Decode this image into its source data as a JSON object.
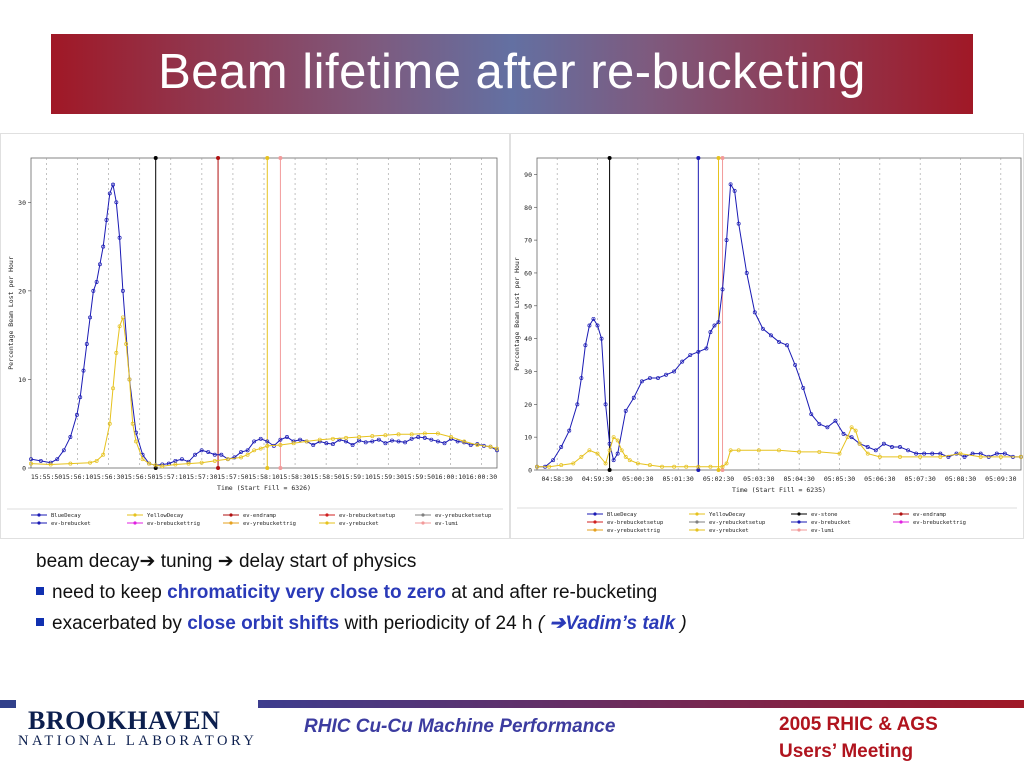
{
  "slide": {
    "title": "Beam lifetime after re-bucketing"
  },
  "bullets": {
    "line1": {
      "a": "beam decay",
      "arrow1": "➔",
      "b": " tuning ",
      "arrow2": "➔",
      "c": " delay start of physics"
    },
    "line2": {
      "a": "need to keep ",
      "hl": "chromaticity very close to zero",
      "b": " at and after re-bucketing"
    },
    "line3": {
      "a": "exacerbated by ",
      "hl": "close orbit shifts",
      "b": " with periodicity of 24 h ",
      "open": "( ",
      "arrow": "➔",
      "link": "Vadim’s talk",
      "close": " )"
    }
  },
  "footer": {
    "logo_main": "BROOKHAVEN",
    "logo_sub": "NATIONAL LABORATORY",
    "center": "RHIC Cu-Cu Machine Performance",
    "right_line1": "2005 RHIC & AGS",
    "right_line2": "Users’ Meeting"
  },
  "colors": {
    "blue_series": "#1a1ab4",
    "yellow_series": "#e6c21e",
    "title_bar_edge": "#a01826",
    "title_bar_center": "#6370a2",
    "highlight": "#2a3ab8",
    "footer_red": "#b0141e"
  },
  "chart_data": [
    {
      "type": "line",
      "xlabel": "Time (Start Fill = 6326)",
      "ylabel": "Percentage Beam Lost per Hour",
      "ylim": [
        0,
        35
      ],
      "yticks": [
        0,
        10,
        20,
        30
      ],
      "xticks": [
        "15:55:50",
        "15:56:10",
        "15:56:30",
        "15:56:50",
        "15:57:10",
        "15:57:30",
        "15:57:50",
        "15:58:10",
        "15:58:30",
        "15:58:50",
        "15:59:10",
        "15:59:30",
        "15:59:50",
        "16:00:10",
        "16:00:30"
      ],
      "grid": true,
      "legend_position": "bottom",
      "series": [
        {
          "name": "BlueDecay",
          "color": "#1a1ab4",
          "x": [
            0,
            3,
            6,
            8,
            10,
            12,
            14,
            15,
            16,
            17,
            18,
            19,
            20,
            21,
            22,
            23,
            24,
            25,
            26,
            27,
            28,
            30,
            32,
            34,
            36,
            38,
            40,
            42,
            44,
            46,
            48,
            50,
            52,
            54,
            56,
            58,
            60,
            62,
            64,
            66,
            68,
            70,
            72,
            74,
            76,
            78,
            80,
            82,
            84,
            86,
            88,
            90,
            92,
            94,
            96,
            98,
            100,
            102,
            104,
            106,
            108,
            110,
            112,
            114,
            116,
            118,
            120,
            122,
            124,
            126,
            128,
            130,
            132,
            134,
            136,
            138,
            140,
            142
          ],
          "y": [
            1,
            0.8,
            0.6,
            1,
            2,
            3.5,
            6,
            8,
            11,
            14,
            17,
            20,
            21,
            23,
            25,
            28,
            31,
            32,
            30,
            26,
            20,
            10,
            4,
            1.5,
            0.5,
            0.3,
            0.4,
            0.5,
            0.8,
            1,
            0.7,
            1.5,
            2,
            1.8,
            1.5,
            1.5,
            1,
            1.2,
            1.8,
            2,
            3,
            3.3,
            3,
            2.5,
            3.2,
            3.5,
            3,
            3.2,
            3,
            2.6,
            3,
            2.8,
            2.7,
            3.2,
            3,
            2.6,
            3.1,
            2.9,
            3,
            3.2,
            2.8,
            3.1,
            3,
            2.9,
            3.3,
            3.5,
            3.4,
            3.2,
            3,
            2.8,
            3.3,
            3,
            2.9,
            2.6,
            2.7,
            2.5,
            2.4,
            2
          ]
        },
        {
          "name": "YellowDecay",
          "color": "#e6c21e",
          "x": [
            0,
            6,
            12,
            18,
            20,
            22,
            24,
            25,
            26,
            27,
            28,
            29,
            30,
            31,
            32,
            34,
            36,
            38,
            40,
            44,
            48,
            52,
            56,
            60,
            64,
            66,
            68,
            70,
            72,
            76,
            80,
            84,
            88,
            92,
            96,
            100,
            104,
            108,
            112,
            116,
            120,
            124,
            128,
            132,
            136,
            140,
            142
          ],
          "y": [
            0.5,
            0.4,
            0.5,
            0.6,
            0.8,
            1.5,
            5,
            9,
            13,
            16,
            17,
            14,
            10,
            5,
            3,
            1,
            0.5,
            0.3,
            0.2,
            0.4,
            0.5,
            0.6,
            0.8,
            1,
            1.2,
            1.5,
            2,
            2.2,
            2.5,
            2.6,
            2.8,
            3,
            3.2,
            3.3,
            3.4,
            3.5,
            3.6,
            3.7,
            3.8,
            3.8,
            3.9,
            3.9,
            3.5,
            3,
            2.6,
            2.4,
            2.2
          ]
        }
      ],
      "markers": [
        "ev-stone",
        "ev-endramp",
        "ev-yrebucket",
        "ev-lumi"
      ],
      "legend": [
        "BlueDecay",
        "YellowDecay",
        "ev-endramp",
        "ev-brebucketsetup",
        "ev-yrebucketsetup",
        "ev-brebucket",
        "ev-brebuckettrig",
        "ev-yrebuckettrig",
        "ev-yrebucket",
        "ev-lumi"
      ]
    },
    {
      "type": "line",
      "xlabel": "Time (Start Fill = 6235)",
      "ylabel": "Percentage Beam Lost per Hour",
      "ylim": [
        0,
        95
      ],
      "yticks": [
        0,
        10,
        20,
        30,
        40,
        50,
        60,
        70,
        80,
        90
      ],
      "xticks": [
        "04:58:30",
        "04:59:30",
        "05:00:30",
        "05:01:30",
        "05:02:30",
        "05:03:30",
        "05:04:30",
        "05:05:30",
        "05:06:30",
        "05:07:30",
        "05:08:30",
        "05:09:30"
      ],
      "grid": true,
      "legend_position": "bottom",
      "series": [
        {
          "name": "BlueDecay",
          "color": "#1a1ab4",
          "x": [
            0,
            4,
            8,
            12,
            16,
            20,
            22,
            24,
            26,
            28,
            30,
            32,
            34,
            36,
            38,
            40,
            44,
            48,
            52,
            56,
            60,
            64,
            68,
            72,
            76,
            80,
            84,
            86,
            88,
            90,
            92,
            94,
            96,
            98,
            100,
            104,
            108,
            112,
            116,
            120,
            124,
            128,
            132,
            136,
            140,
            144,
            148,
            152,
            156,
            160,
            164,
            168,
            172,
            176,
            180,
            184,
            188,
            192,
            196,
            200,
            204,
            208,
            212,
            216,
            220,
            224,
            228,
            232,
            236,
            240
          ],
          "y": [
            1,
            1,
            3,
            7,
            12,
            20,
            28,
            38,
            44,
            46,
            44,
            40,
            20,
            8,
            3,
            5,
            18,
            22,
            27,
            28,
            28,
            29,
            30,
            33,
            35,
            36,
            37,
            42,
            44,
            45,
            55,
            70,
            87,
            85,
            75,
            60,
            48,
            43,
            41,
            39,
            38,
            32,
            25,
            17,
            14,
            13,
            15,
            11,
            10,
            8,
            7,
            6,
            8,
            7,
            7,
            6,
            5,
            5,
            5,
            5,
            4,
            5,
            4,
            5,
            5,
            4,
            5,
            5,
            4,
            4
          ]
        },
        {
          "name": "YellowDecay",
          "color": "#e6c21e",
          "x": [
            0,
            6,
            12,
            18,
            22,
            26,
            30,
            34,
            36,
            38,
            40,
            42,
            44,
            46,
            50,
            56,
            62,
            68,
            74,
            80,
            86,
            92,
            94,
            96,
            100,
            110,
            120,
            130,
            140,
            150,
            154,
            156,
            158,
            160,
            164,
            170,
            180,
            190,
            200,
            210,
            220,
            230,
            240
          ],
          "y": [
            1,
            1,
            1.5,
            2,
            4,
            6,
            5,
            2,
            6,
            10,
            9,
            6,
            4,
            3,
            2,
            1.5,
            1,
            1,
            1,
            1,
            1,
            1,
            2,
            6,
            6,
            6,
            6,
            5.5,
            5.5,
            5,
            10,
            13,
            12,
            8,
            5,
            4,
            4,
            4,
            4,
            5,
            4,
            4,
            4
          ]
        }
      ],
      "markers": [
        "ev-stone",
        "ev-brebucket",
        "ev-yrebucket",
        "ev-lumi"
      ],
      "legend": [
        "BlueDecay",
        "YellowDecay",
        "ev-stone",
        "ev-endramp",
        "ev-brebucketsetup",
        "ev-yrebucketsetup",
        "ev-brebucket",
        "ev-brebuckettrig",
        "ev-yrebuckettrig",
        "ev-yrebucket",
        "ev-lumi"
      ]
    }
  ]
}
